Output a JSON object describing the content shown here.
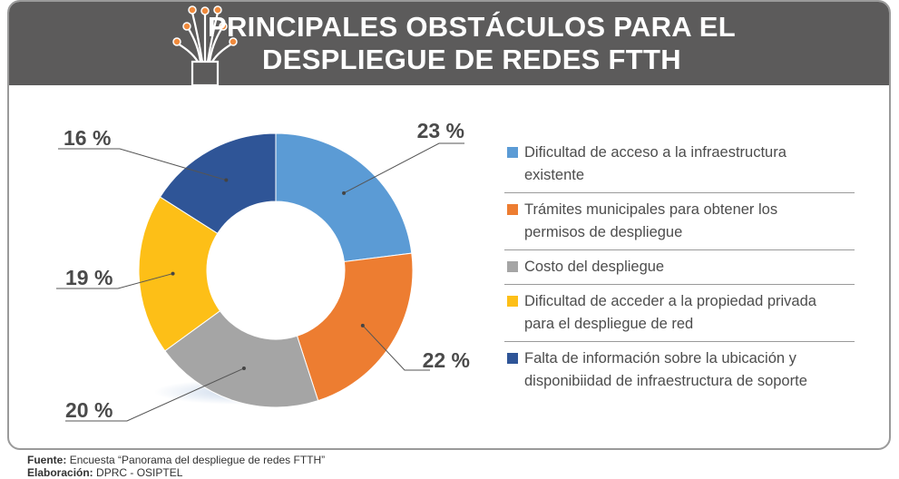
{
  "header": {
    "title_line1": "PRINCIPALES OBSTÁCULOS PARA EL",
    "title_line2": "DESPLIEGUE DE REDES FTTH",
    "icon": "fiber-optic-icon"
  },
  "chart_data": {
    "type": "pie",
    "variant": "donut",
    "title": "PRINCIPALES OBSTÁCULOS PARA EL DESPLIEGUE DE REDES FTTH",
    "categories": [
      "Dificultad de acceso a la infraestructura existente",
      "Trámites municipales para obtener los permisos de despliegue",
      "Costo del despliegue",
      "Dificultad de acceder a la propiedad privada para el despliegue de red",
      "Falta de información sobre la ubicación y disponibiidad de infraestructura de soporte"
    ],
    "values": [
      23,
      22,
      20,
      19,
      16
    ],
    "value_labels": [
      "23 %",
      "22  %",
      "20 %",
      "19 %",
      "16 %"
    ],
    "colors": [
      "#5b9bd5",
      "#ed7d31",
      "#a5a5a5",
      "#fdbf17",
      "#2f5597"
    ],
    "legend_position": "right"
  },
  "legend": {
    "items": [
      {
        "line1": "Dificultad de acceso a la infraestructura",
        "line2": "existente"
      },
      {
        "line1": "Trámites municipales para obtener los",
        "line2": "permisos de despliegue"
      },
      {
        "line1": "Costo del despliegue",
        "line2": ""
      },
      {
        "line1": "Dificultad de acceder a la propiedad privada",
        "line2": "para el despliegue de red"
      },
      {
        "line1": "Falta de información sobre la ubicación y",
        "line2": "disponibiidad de infraestructura de soporte"
      }
    ]
  },
  "footer": {
    "source_label": "Fuente:",
    "source_text": "Encuesta “Panorama del despliegue de redes FTTH”",
    "author_label": "Elaboración:",
    "author_text": "DPRC - OSIPTEL"
  }
}
